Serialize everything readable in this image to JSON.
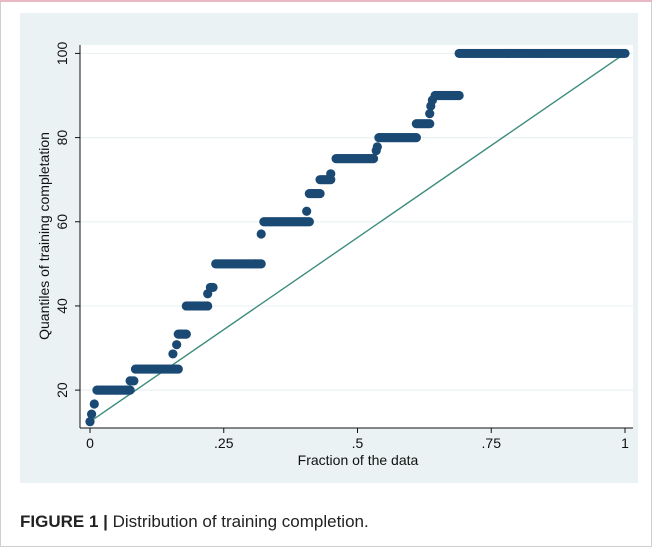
{
  "caption": {
    "label": "FIGURE 1 |",
    "text": "Distribution of training completion."
  },
  "chart_data": {
    "type": "scatter",
    "title": "",
    "xlabel": "Fraction of the data",
    "ylabel": "Quantiles of training completation",
    "xlim": [
      0,
      1
    ],
    "ylim": [
      11,
      102
    ],
    "xticks": [
      0,
      0.25,
      0.5,
      0.75,
      1
    ],
    "xtick_labels": [
      "0",
      ".25",
      ".5",
      ".75",
      "1"
    ],
    "yticks": [
      20,
      40,
      60,
      80,
      100
    ],
    "ytick_labels": [
      "20",
      "40",
      "60",
      "80",
      "100"
    ],
    "grid": true,
    "marker_color": "#1a4a74",
    "line_color": "#3d8c7c",
    "reference_line": {
      "x": [
        0,
        1
      ],
      "y": [
        12.5,
        100
      ]
    },
    "steps": [
      {
        "x": [
          0.0,
          0.0
        ],
        "y": 12.5
      },
      {
        "x": [
          0.003,
          0.003
        ],
        "y": 14.3
      },
      {
        "x": [
          0.008,
          0.008
        ],
        "y": 16.7
      },
      {
        "x": [
          0.013,
          0.075
        ],
        "y": 20
      },
      {
        "x": [
          0.075,
          0.082
        ],
        "y": 22.2
      },
      {
        "x": [
          0.085,
          0.165
        ],
        "y": 25
      },
      {
        "x": [
          0.155,
          0.155
        ],
        "y": 28.6
      },
      {
        "x": [
          0.162,
          0.162
        ],
        "y": 30.8
      },
      {
        "x": [
          0.165,
          0.18
        ],
        "y": 33.3
      },
      {
        "x": [
          0.18,
          0.22
        ],
        "y": 40
      },
      {
        "x": [
          0.22,
          0.22
        ],
        "y": 42.9
      },
      {
        "x": [
          0.225,
          0.23
        ],
        "y": 44.4
      },
      {
        "x": [
          0.235,
          0.32
        ],
        "y": 50
      },
      {
        "x": [
          0.32,
          0.32
        ],
        "y": 57.1
      },
      {
        "x": [
          0.325,
          0.41
        ],
        "y": 60
      },
      {
        "x": [
          0.405,
          0.405
        ],
        "y": 62.5
      },
      {
        "x": [
          0.41,
          0.43
        ],
        "y": 66.7
      },
      {
        "x": [
          0.43,
          0.45
        ],
        "y": 70
      },
      {
        "x": [
          0.45,
          0.45
        ],
        "y": 71.4
      },
      {
        "x": [
          0.46,
          0.53
        ],
        "y": 75
      },
      {
        "x": [
          0.535,
          0.535
        ],
        "y": 76.9
      },
      {
        "x": [
          0.537,
          0.537
        ],
        "y": 77.8
      },
      {
        "x": [
          0.54,
          0.61
        ],
        "y": 80
      },
      {
        "x": [
          0.61,
          0.635
        ],
        "y": 83.3
      },
      {
        "x": [
          0.635,
          0.635
        ],
        "y": 85.7
      },
      {
        "x": [
          0.637,
          0.637
        ],
        "y": 87.5
      },
      {
        "x": [
          0.64,
          0.64
        ],
        "y": 88.9
      },
      {
        "x": [
          0.645,
          0.69
        ],
        "y": 90
      },
      {
        "x": [
          0.69,
          1.0
        ],
        "y": 100
      }
    ]
  }
}
